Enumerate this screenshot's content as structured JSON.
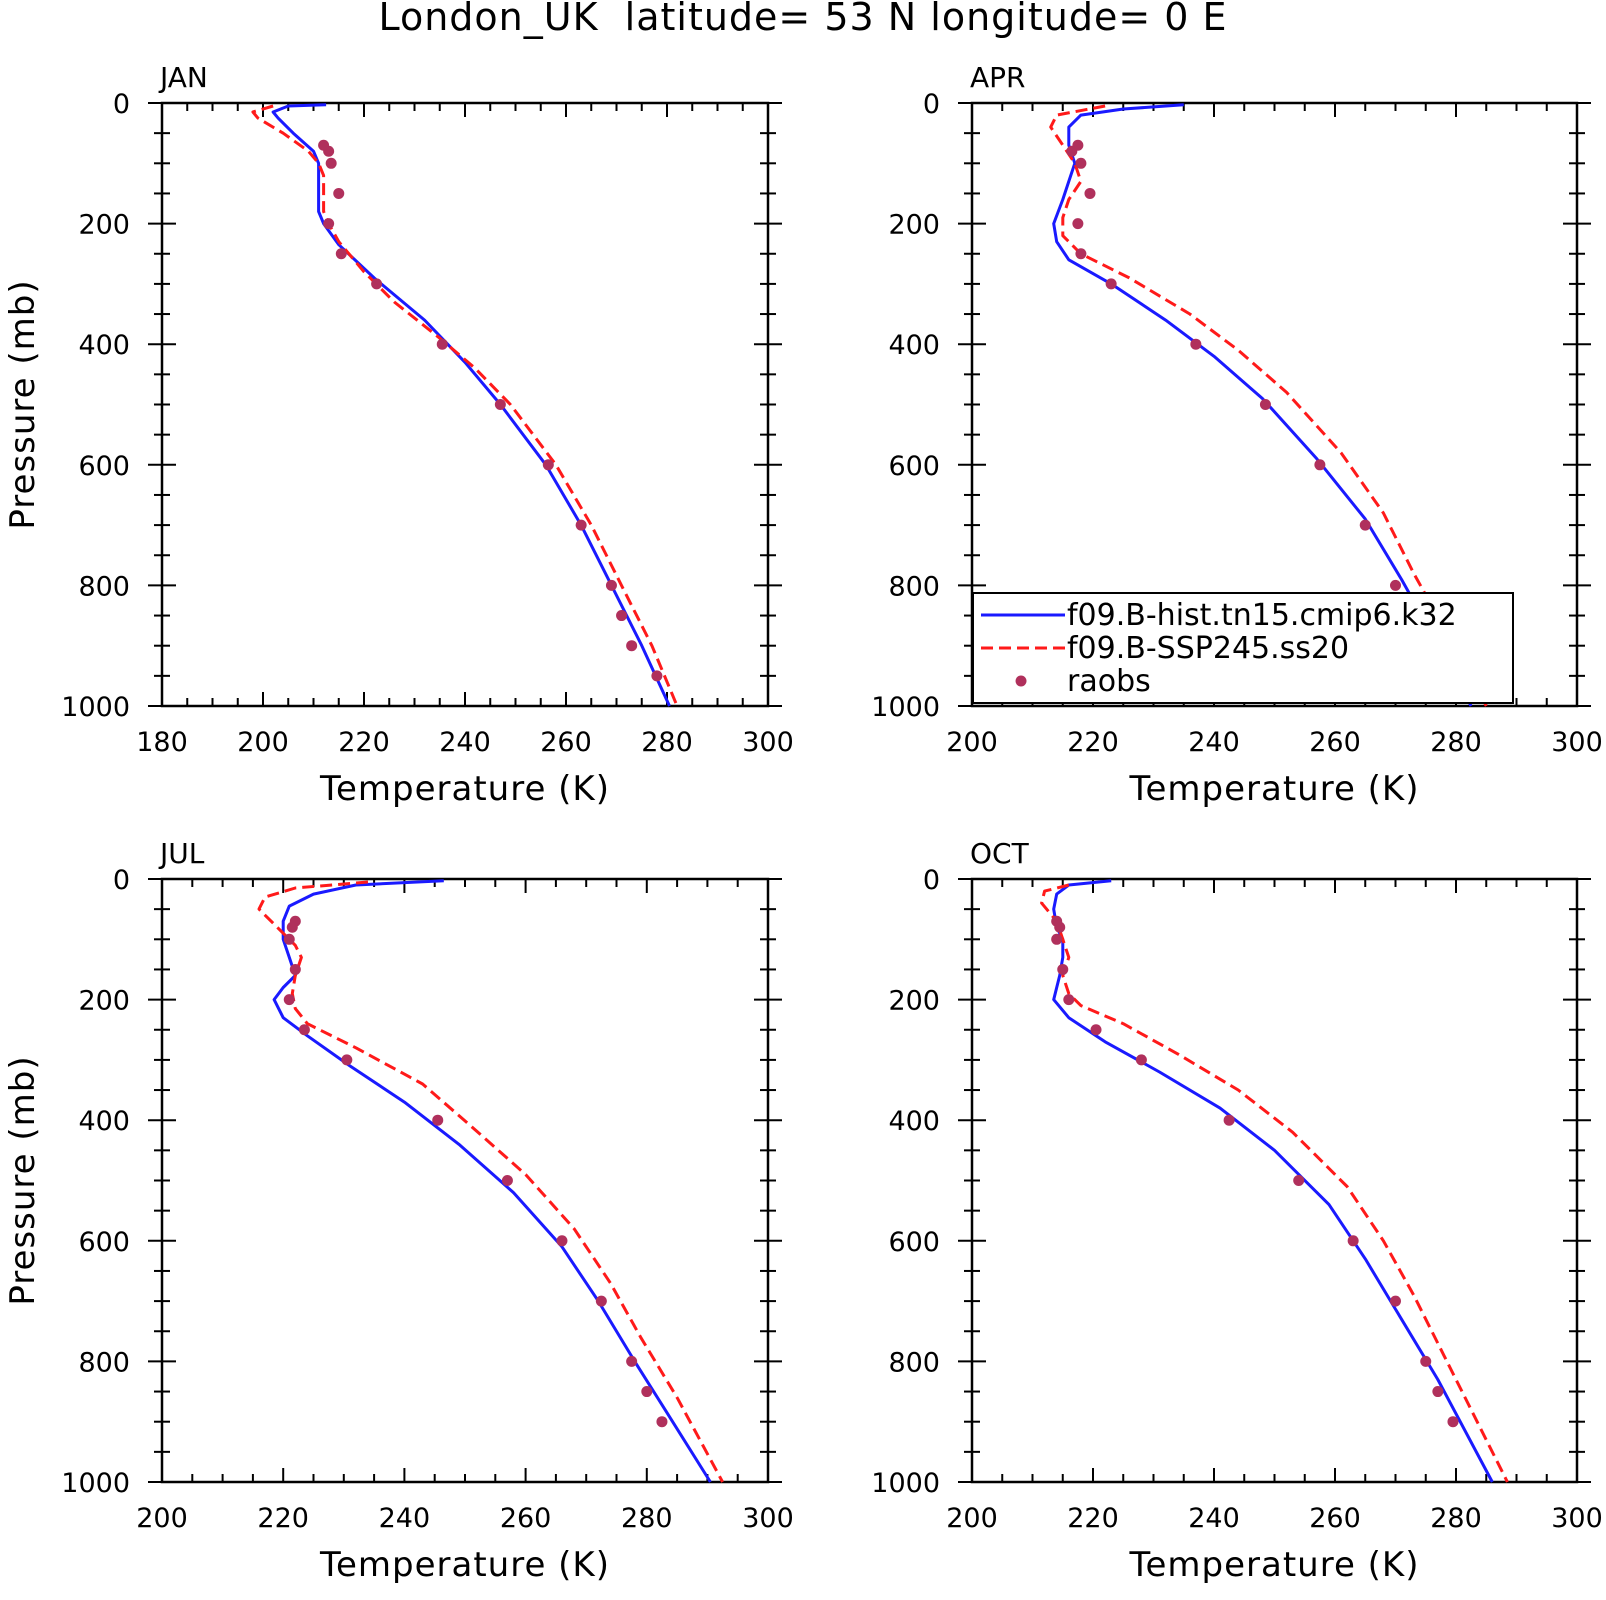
{
  "figure": {
    "title": "London_UK  latitude= 53 N longitude= 0 E"
  },
  "colors": {
    "hist": "#1a1aff",
    "ssp": "#ff1a1a",
    "raobs": "#b0305c",
    "axis": "#000000"
  },
  "legend": {
    "panel_index": 1,
    "entries": [
      {
        "label": "f09.B-hist.tn15.cmip6.k32",
        "style": "solid",
        "color": "#1a1aff"
      },
      {
        "label": "f09.B-SSP245.ss20",
        "style": "dashed",
        "color": "#ff1a1a"
      },
      {
        "label": "raobs",
        "style": "marker",
        "color": "#b0305c"
      }
    ]
  },
  "chart_data": [
    {
      "type": "line",
      "panel_label": "JAN",
      "xlabel": "Temperature (K)",
      "ylabel": "Pressure (mb)",
      "xlim": [
        180,
        300
      ],
      "ylim": [
        1000,
        0
      ],
      "xticks": [
        "180",
        "200",
        "220",
        "240",
        "260",
        "280",
        "300"
      ],
      "yticks": [
        "0",
        "200",
        "400",
        "600",
        "800",
        "1000"
      ],
      "series": [
        {
          "name": "f09.B-hist.tn15.cmip6.k32",
          "style": "solid",
          "color": "#1a1aff",
          "x": [
            212.5,
            205,
            202,
            203,
            206,
            210,
            211,
            211,
            211,
            211,
            212,
            215,
            222,
            232,
            240,
            247,
            256,
            263,
            269,
            275,
            280.5
          ],
          "y": [
            3,
            5,
            15,
            25,
            50,
            80,
            100,
            120,
            150,
            180,
            200,
            235,
            290,
            360,
            430,
            500,
            600,
            700,
            800,
            900,
            1000
          ]
        },
        {
          "name": "f09.B-SSP245.ss20",
          "style": "dashed",
          "color": "#ff1a1a",
          "x": [
            202,
            198,
            199,
            204,
            209,
            211,
            212,
            212,
            212,
            213,
            215,
            220,
            226,
            235,
            242,
            249,
            258,
            265,
            271,
            277,
            282
          ],
          "y": [
            5,
            15,
            25,
            50,
            80,
            100,
            120,
            150,
            180,
            200,
            230,
            280,
            330,
            390,
            440,
            500,
            600,
            700,
            800,
            900,
            1000
          ]
        },
        {
          "name": "raobs",
          "style": "marker",
          "color": "#b0305c",
          "x": [
            212,
            213,
            213.5,
            215,
            213,
            215.5,
            222.5,
            235.5,
            247,
            256.5,
            263,
            269,
            271,
            273,
            278
          ],
          "y": [
            70,
            80,
            100,
            150,
            200,
            250,
            300,
            400,
            500,
            600,
            700,
            800,
            850,
            900,
            950
          ]
        }
      ]
    },
    {
      "type": "line",
      "panel_label": "APR",
      "xlabel": "Temperature (K)",
      "ylabel": "",
      "xlim": [
        200,
        300
      ],
      "ylim": [
        1000,
        0
      ],
      "xticks": [
        "200",
        "220",
        "240",
        "260",
        "280",
        "300"
      ],
      "yticks": [
        "0",
        "200",
        "400",
        "600",
        "800",
        "1000"
      ],
      "series": [
        {
          "name": "f09.B-hist.tn15.cmip6.k32",
          "style": "solid",
          "color": "#1a1aff",
          "x": [
            235,
            225,
            218,
            216,
            216,
            217,
            216,
            215,
            213.5,
            214,
            216,
            223,
            232,
            240,
            248,
            257,
            265,
            271,
            276,
            282.5
          ],
          "y": [
            3,
            10,
            20,
            40,
            70,
            100,
            130,
            160,
            200,
            230,
            260,
            300,
            360,
            420,
            490,
            590,
            690,
            790,
            880,
            1000
          ]
        },
        {
          "name": "f09.B-SSP245.ss20",
          "style": "dashed",
          "color": "#ff1a1a",
          "x": [
            222,
            214,
            213,
            215,
            217,
            218,
            216,
            215,
            215,
            218,
            226,
            236,
            244,
            252,
            261,
            268,
            273,
            278,
            285
          ],
          "y": [
            5,
            20,
            40,
            70,
            100,
            130,
            160,
            190,
            220,
            250,
            290,
            350,
            410,
            480,
            580,
            680,
            780,
            870,
            1000
          ]
        },
        {
          "name": "raobs",
          "style": "marker",
          "color": "#b0305c",
          "x": [
            217.5,
            216.5,
            218,
            219.5,
            217.5,
            218,
            223,
            237,
            248.5,
            257.5,
            265,
            270,
            272.5,
            275
          ],
          "y": [
            70,
            80,
            100,
            150,
            200,
            250,
            300,
            400,
            500,
            600,
            700,
            800,
            850,
            900
          ]
        }
      ]
    },
    {
      "type": "line",
      "panel_label": "JUL",
      "xlabel": "Temperature (K)",
      "ylabel": "Pressure (mb)",
      "xlim": [
        200,
        300
      ],
      "ylim": [
        1000,
        0
      ],
      "xticks": [
        "200",
        "220",
        "240",
        "260",
        "280",
        "300"
      ],
      "yticks": [
        "0",
        "200",
        "400",
        "600",
        "800",
        "1000"
      ],
      "series": [
        {
          "name": "f09.B-hist.tn15.cmip6.k32",
          "style": "solid",
          "color": "#1a1aff",
          "x": [
            246.5,
            232,
            225,
            221,
            220,
            220,
            221,
            222,
            220,
            218.5,
            220,
            224,
            231,
            240,
            249,
            258,
            266,
            272,
            278,
            283,
            290.5
          ],
          "y": [
            3,
            10,
            25,
            45,
            70,
            100,
            130,
            160,
            180,
            200,
            230,
            260,
            310,
            370,
            440,
            520,
            610,
            700,
            800,
            880,
            1000
          ]
        },
        {
          "name": "f09.B-SSP245.ss20",
          "style": "dashed",
          "color": "#ff1a1a",
          "x": [
            234,
            222,
            217,
            216,
            219,
            222,
            223,
            222,
            221.5,
            222,
            224,
            232,
            243,
            251,
            260,
            268,
            274,
            279,
            285,
            292.5
          ],
          "y": [
            5,
            15,
            30,
            50,
            80,
            110,
            130,
            160,
            190,
            215,
            240,
            280,
            340,
            410,
            490,
            580,
            670,
            760,
            860,
            1000
          ]
        },
        {
          "name": "raobs",
          "style": "marker",
          "color": "#b0305c",
          "x": [
            222,
            221.5,
            221,
            222,
            221,
            223.5,
            230.5,
            245.5,
            257,
            266,
            272.5,
            277.5,
            280,
            282.5
          ],
          "y": [
            70,
            80,
            100,
            150,
            200,
            250,
            300,
            400,
            500,
            600,
            700,
            800,
            850,
            900
          ]
        }
      ]
    },
    {
      "type": "line",
      "panel_label": "OCT",
      "xlabel": "Temperature (K)",
      "ylabel": "",
      "xlim": [
        200,
        300
      ],
      "ylim": [
        1000,
        0
      ],
      "xticks": [
        "200",
        "220",
        "240",
        "260",
        "280",
        "300"
      ],
      "yticks": [
        "0",
        "200",
        "400",
        "600",
        "800",
        "1000"
      ],
      "series": [
        {
          "name": "f09.B-hist.tn15.cmip6.k32",
          "style": "solid",
          "color": "#1a1aff",
          "x": [
            223,
            216,
            214,
            213.5,
            214,
            215,
            215,
            214.5,
            214,
            213.5,
            213.5,
            216,
            222,
            231,
            241,
            250,
            259,
            265,
            271,
            277,
            286
          ],
          "y": [
            3,
            10,
            25,
            50,
            80,
            100,
            130,
            160,
            180,
            200,
            200,
            230,
            270,
            320,
            380,
            450,
            540,
            630,
            730,
            830,
            1000
          ]
        },
        {
          "name": "f09.B-SSP245.ss20",
          "style": "dashed",
          "color": "#ff1a1a",
          "x": [
            216,
            212,
            211.5,
            214,
            215,
            216,
            215,
            216,
            218,
            225,
            234,
            244,
            253,
            262,
            268,
            273,
            278,
            288.5
          ],
          "y": [
            10,
            20,
            40,
            70,
            100,
            130,
            160,
            190,
            210,
            240,
            290,
            350,
            420,
            510,
            600,
            690,
            790,
            1000
          ]
        },
        {
          "name": "raobs",
          "style": "marker",
          "color": "#b0305c",
          "x": [
            214,
            214.5,
            214,
            215,
            216,
            220.5,
            228,
            242.5,
            254,
            263,
            270,
            275,
            277,
            279.5
          ],
          "y": [
            70,
            80,
            100,
            150,
            200,
            250,
            300,
            400,
            500,
            600,
            700,
            800,
            850,
            900
          ]
        }
      ]
    }
  ]
}
